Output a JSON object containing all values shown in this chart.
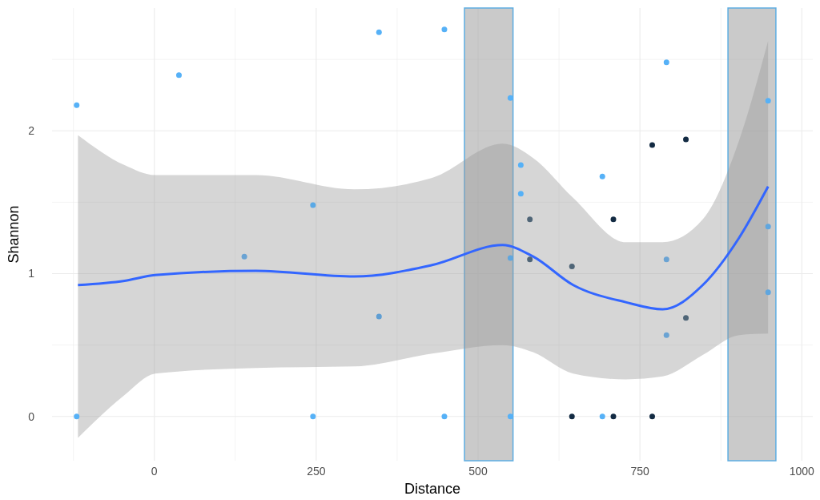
{
  "chart_data": {
    "type": "scatter",
    "xlabel": "Distance",
    "ylabel": "Shannon",
    "xlim": [
      -158,
      1017
    ],
    "ylim": [
      -0.31,
      2.86
    ],
    "xticks": [
      {
        "value": -125,
        "label": null
      },
      0,
      {
        "value": 125,
        "label": null
      },
      250,
      {
        "value": 375,
        "label": null
      },
      500,
      {
        "value": 625,
        "label": null
      },
      750,
      {
        "value": 875,
        "label": null
      },
      1000
    ],
    "yticks": [
      0,
      {
        "value": 0.5,
        "label": null
      },
      1,
      {
        "value": 1.5,
        "label": null
      },
      2,
      {
        "value": 2.5,
        "label": null
      }
    ],
    "grid": true,
    "marker": "circle",
    "bands": [
      {
        "axis": "x",
        "from": 479,
        "to": 554,
        "color": "#a6a6a6"
      },
      {
        "axis": "x",
        "from": 886,
        "to": 960,
        "color": "#a6a6a6"
      }
    ],
    "series": [
      {
        "x": [
          -120,
          -120,
          38,
          139,
          245,
          245,
          347,
          347,
          448,
          448,
          550,
          550,
          550,
          566,
          566,
          580,
          580,
          645,
          645,
          692,
          692,
          709,
          709,
          769,
          769,
          791,
          791,
          791,
          821,
          821,
          948,
          948,
          948
        ],
        "values": [
          2.18,
          0,
          2.39,
          1.12,
          1.48,
          0,
          2.69,
          0.7,
          2.71,
          0,
          2.23,
          1.11,
          0,
          1.76,
          1.56,
          1.38,
          1.1,
          1.05,
          0,
          1.68,
          0,
          1.38,
          0,
          1.9,
          0,
          2.48,
          1.1,
          0.57,
          1.94,
          0.69,
          2.21,
          1.33,
          0.87
        ],
        "colors": [
          "#56b1f7",
          "#56b1f7",
          "#56b1f7",
          "#6aa3d3",
          "#5aa9e6",
          "#56b1f7",
          "#56b1f7",
          "#5f9ed3",
          "#56b1f7",
          "#56b1f7",
          "#56b1f7",
          "#5fa6df",
          "#56b1f7",
          "#56b1f7",
          "#56b1f7",
          "#4f6577",
          "#4f6577",
          "#4f6577",
          "#132b43",
          "#56b1f7",
          "#56b1f7",
          "#132b43",
          "#132b43",
          "#132b43",
          "#132b43",
          "#56b1f7",
          "#6aa3d3",
          "#6aa3d3",
          "#132b43",
          "#4f6577",
          "#56b1f7",
          "#5fa6df",
          "#5fa6df"
        ]
      },
      {
        "type": "line",
        "marker": "none",
        "color": "#3366ff",
        "x": [
          -118,
          -46,
          1,
          157,
          309,
          429,
          538,
          585,
          647,
          728,
          785,
          847,
          903,
          948
        ],
        "values": [
          0.92,
          0.95,
          0.99,
          1.02,
          0.98,
          1.06,
          1.2,
          1.12,
          0.92,
          0.8,
          0.75,
          0.92,
          1.25,
          1.61
        ],
        "upper": [
          1.97,
          1.76,
          1.69,
          1.69,
          1.59,
          1.67,
          1.91,
          1.81,
          1.53,
          1.22,
          1.22,
          1.38,
          1.93,
          2.63
        ],
        "lower": [
          -0.15,
          0.15,
          0.3,
          0.34,
          0.35,
          0.44,
          0.5,
          0.45,
          0.3,
          0.26,
          0.28,
          0.43,
          0.57,
          0.58
        ]
      }
    ]
  }
}
